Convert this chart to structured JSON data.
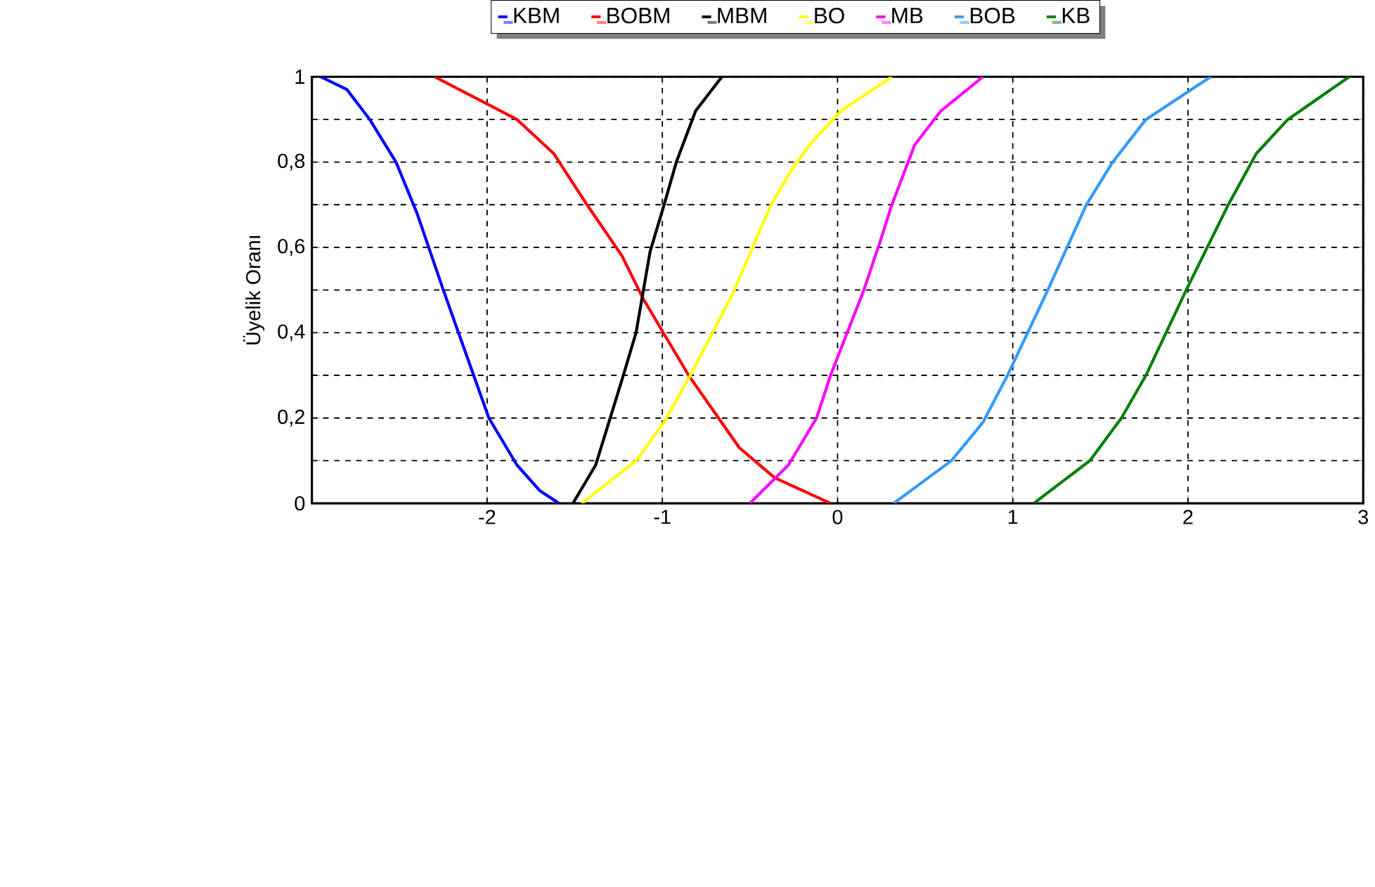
{
  "chart_data": {
    "type": "line",
    "ylabel": "Üyelik Oranı",
    "xlim": [
      -3,
      3
    ],
    "ylim": [
      0,
      1
    ],
    "xticks": [
      -2,
      -1,
      0,
      1,
      2,
      3
    ],
    "yticks": [
      0,
      {
        "value": 0.1,
        "label": null
      },
      {
        "value": 0.2,
        "label": "0,2"
      },
      {
        "value": 0.3,
        "label": null
      },
      {
        "value": 0.4,
        "label": "0,4"
      },
      {
        "value": 0.5,
        "label": null
      },
      {
        "value": 0.6,
        "label": "0,6"
      },
      {
        "value": 0.7,
        "label": null
      },
      {
        "value": 0.8,
        "label": "0,8"
      },
      {
        "value": 0.9,
        "label": null
      },
      1
    ],
    "grid": true,
    "legend": "top",
    "marker": "none",
    "line_style": "solid",
    "series": [
      {
        "name": "KBM",
        "color": "#0000ff",
        "x": [
          -2.95,
          -2.8,
          -2.67,
          -2.52,
          -2.4,
          -2.25,
          -2.12,
          -1.99,
          -1.83,
          -1.7,
          -1.59
        ],
        "values": [
          1,
          0.97,
          0.9,
          0.8,
          0.68,
          0.5,
          0.35,
          0.2,
          0.09,
          0.03,
          0
        ]
      },
      {
        "name": "BOBM",
        "color": "#ff0000",
        "x": [
          -2.3,
          -1.83,
          -1.62,
          -1.43,
          -1.23,
          -1.11,
          -0.85,
          -0.56,
          -0.36,
          -0.04
        ],
        "values": [
          1,
          0.9,
          0.82,
          0.7,
          0.58,
          0.48,
          0.3,
          0.13,
          0.06,
          0
        ]
      },
      {
        "name": "MBM",
        "color": "#000000",
        "x": [
          -1.51,
          -1.38,
          -1.23,
          -1.15,
          -1.07,
          -0.99,
          -0.92,
          -0.81,
          -0.66
        ],
        "values": [
          0,
          0.09,
          0.29,
          0.4,
          0.59,
          0.7,
          0.8,
          0.92,
          1
        ]
      },
      {
        "name": "BO",
        "color": "#ffff00",
        "x": [
          -1.46,
          -1.15,
          -0.99,
          -0.84,
          -0.6,
          -0.38,
          -0.25,
          -0.14,
          0.02,
          0.31
        ],
        "values": [
          0,
          0.1,
          0.19,
          0.3,
          0.49,
          0.7,
          0.79,
          0.85,
          0.92,
          1
        ]
      },
      {
        "name": "MB",
        "color": "#ff00ff",
        "x": [
          -0.5,
          -0.28,
          -0.12,
          -0.04,
          0.15,
          0.24,
          0.31,
          0.44,
          0.59,
          0.83
        ],
        "values": [
          0,
          0.09,
          0.2,
          0.3,
          0.5,
          0.61,
          0.7,
          0.84,
          0.92,
          1
        ]
      },
      {
        "name": "BOB",
        "color": "#3399ff",
        "x": [
          0.32,
          0.65,
          0.83,
          0.97,
          1.2,
          1.42,
          1.57,
          1.76,
          2.13
        ],
        "values": [
          0,
          0.1,
          0.19,
          0.3,
          0.5,
          0.7,
          0.8,
          0.9,
          1
        ]
      },
      {
        "name": "KB",
        "color": "#008000",
        "x": [
          1.12,
          1.44,
          1.62,
          1.76,
          1.99,
          2.23,
          2.39,
          2.57,
          2.92
        ],
        "values": [
          0,
          0.1,
          0.2,
          0.3,
          0.5,
          0.7,
          0.82,
          0.9,
          1
        ]
      }
    ]
  }
}
